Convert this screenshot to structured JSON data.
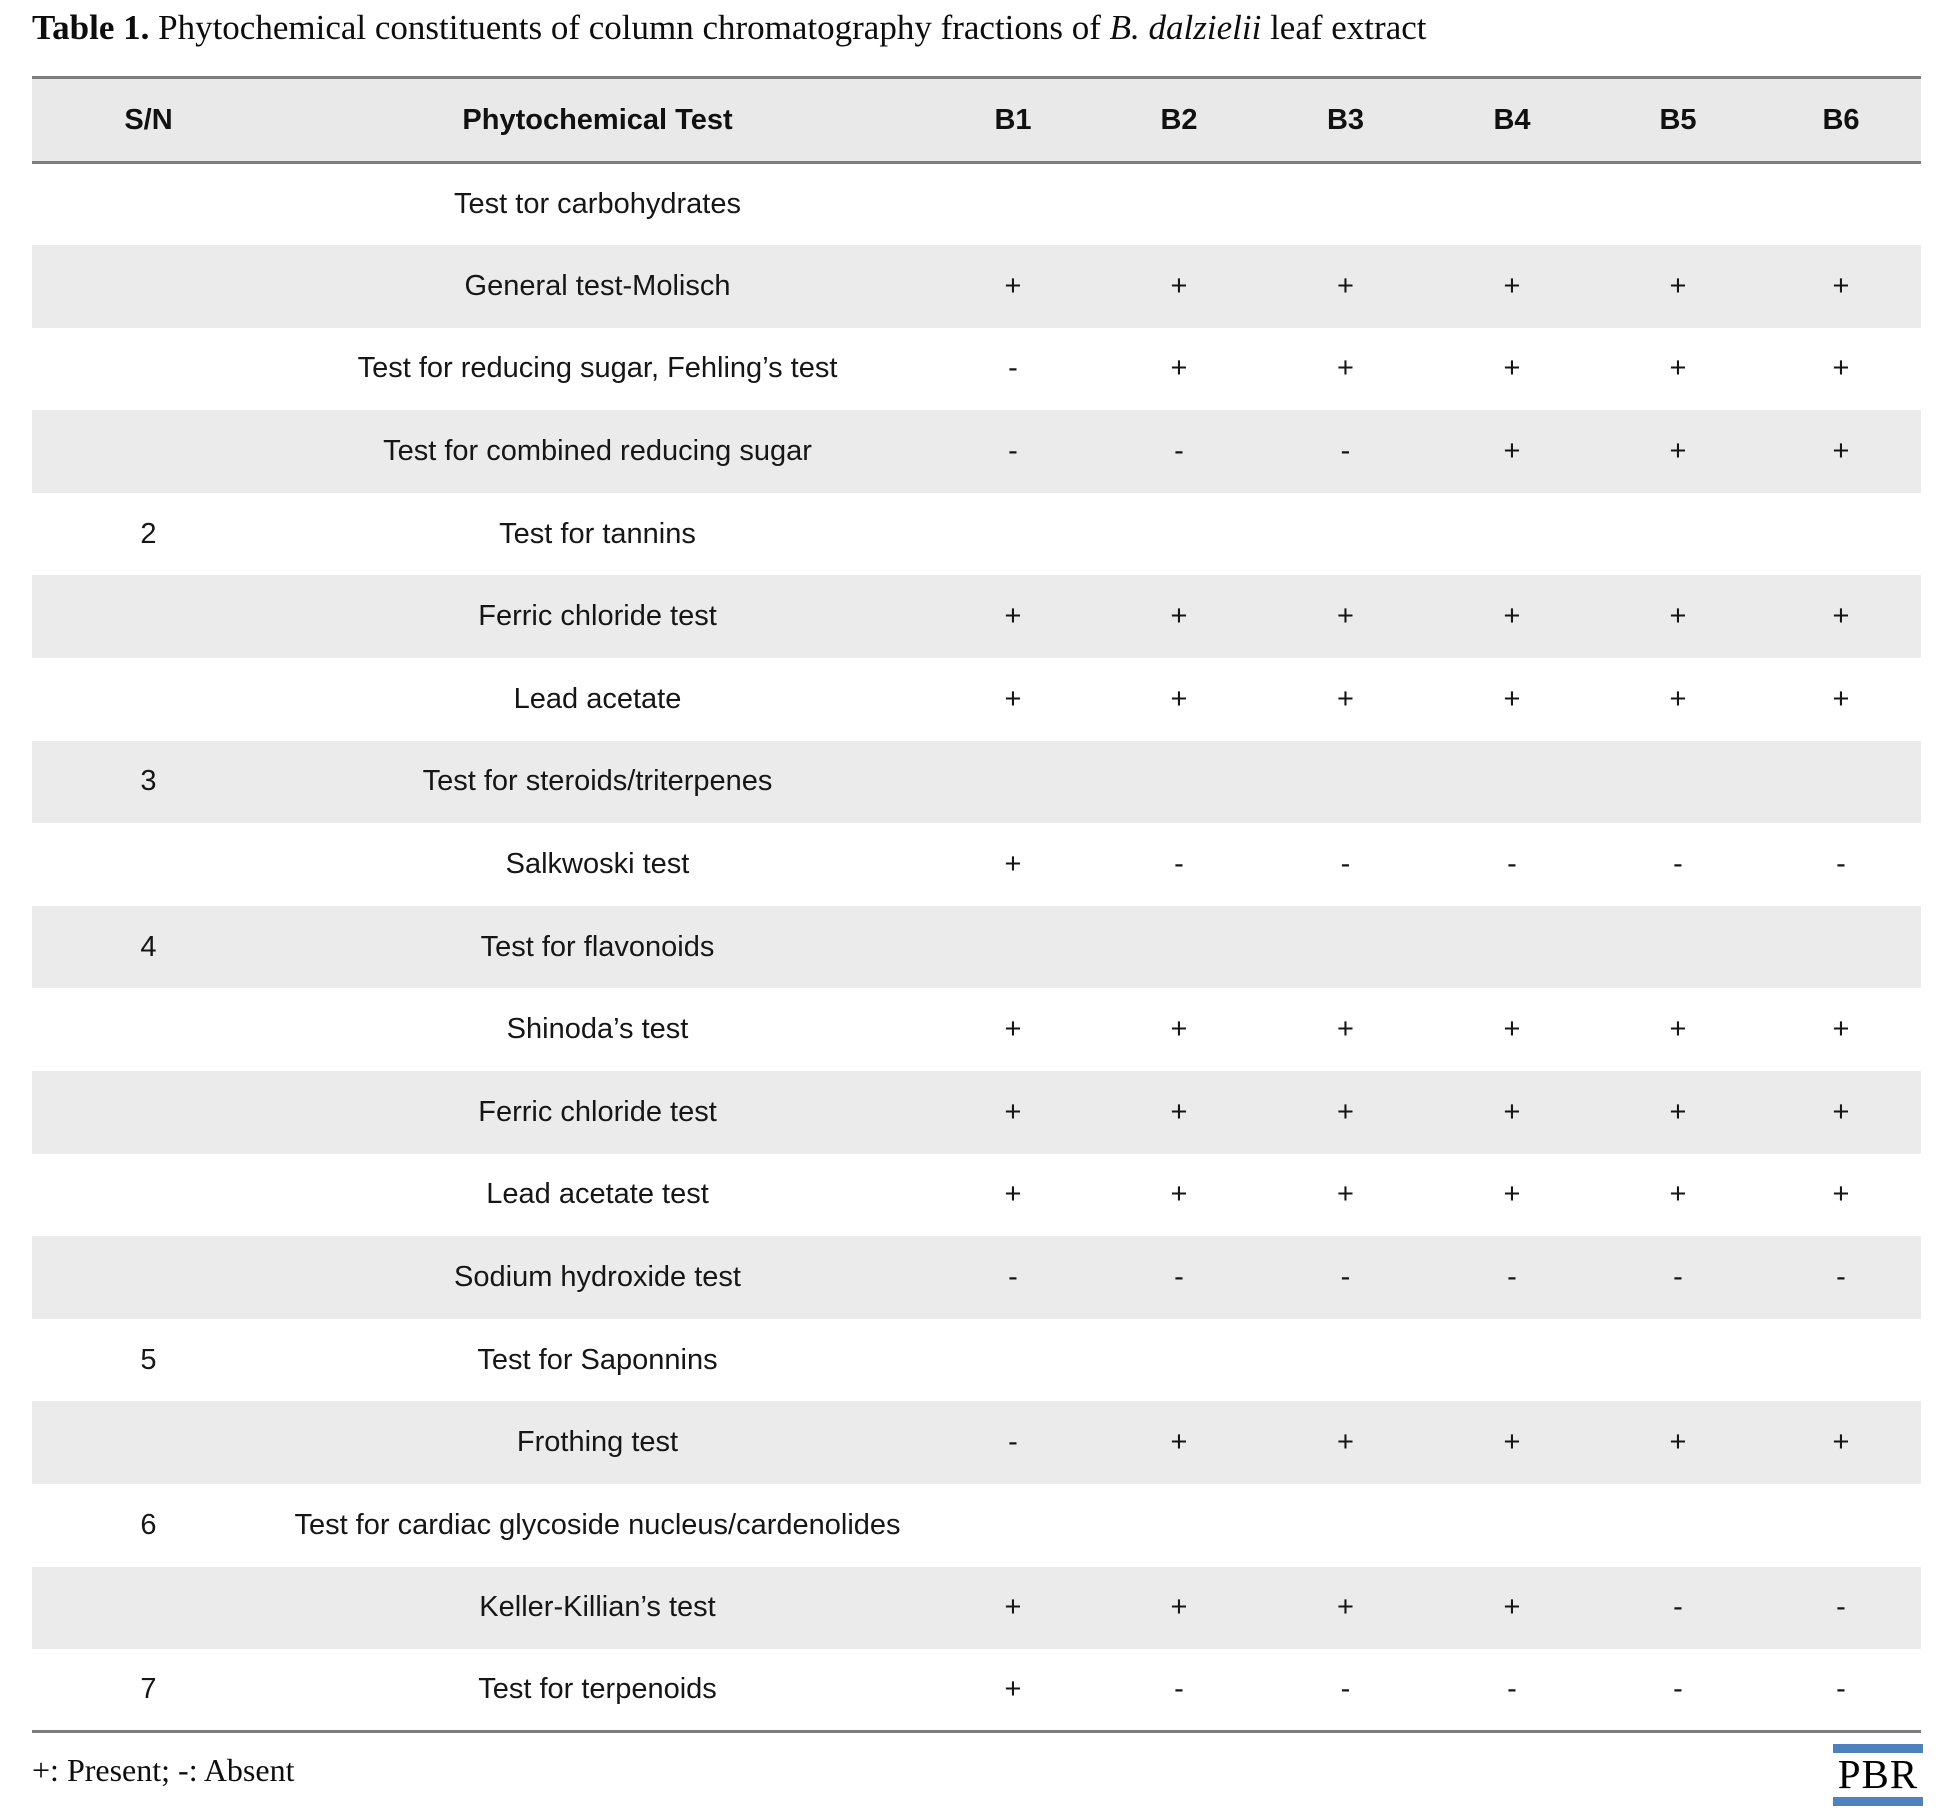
{
  "title": {
    "label": "Table 1.",
    "text_before_species": " Phytochemical constituents of column chromatography fractions of ",
    "species": "B. dalzielii",
    "text_after_species": " leaf extract"
  },
  "table": {
    "columns": [
      "S/N",
      "Phytochemical Test",
      "B1",
      "B2",
      "B3",
      "B4",
      "B5",
      "B6"
    ],
    "rows": [
      {
        "sn": "",
        "test": "Test tor carbohydrates",
        "values": [
          "",
          "",
          "",
          "",
          "",
          ""
        ]
      },
      {
        "sn": "",
        "test": "General test-Molisch",
        "values": [
          "+",
          "+",
          "+",
          "+",
          "+",
          "+"
        ]
      },
      {
        "sn": "",
        "test": "Test for reducing sugar, Fehling’s test",
        "values": [
          "-",
          "+",
          "+",
          "+",
          "+",
          "+"
        ]
      },
      {
        "sn": "",
        "test": "Test for combined reducing sugar",
        "values": [
          "-",
          "-",
          "-",
          "+",
          "+",
          "+"
        ]
      },
      {
        "sn": "2",
        "test": "Test for tannins",
        "values": [
          "",
          "",
          "",
          "",
          "",
          ""
        ]
      },
      {
        "sn": "",
        "test": "Ferric chloride test",
        "values": [
          "+",
          "+",
          "+",
          "+",
          "+",
          "+"
        ]
      },
      {
        "sn": "",
        "test": "Lead acetate",
        "values": [
          "+",
          "+",
          "+",
          "+",
          "+",
          "+"
        ]
      },
      {
        "sn": "3",
        "test": "Test for steroids/triterpenes",
        "values": [
          "",
          "",
          "",
          "",
          "",
          ""
        ]
      },
      {
        "sn": "",
        "test": "Salkwoski test",
        "values": [
          "+",
          "-",
          "-",
          "-",
          "-",
          "-"
        ]
      },
      {
        "sn": "4",
        "test": "Test for flavonoids",
        "values": [
          "",
          "",
          "",
          "",
          "",
          ""
        ]
      },
      {
        "sn": "",
        "test": "Shinoda’s test",
        "values": [
          "+",
          "+",
          "+",
          "+",
          "+",
          "+"
        ]
      },
      {
        "sn": "",
        "test": "Ferric chloride test",
        "values": [
          "+",
          "+",
          "+",
          "+",
          "+",
          "+"
        ]
      },
      {
        "sn": "",
        "test": "Lead acetate test",
        "values": [
          "+",
          "+",
          "+",
          "+",
          "+",
          "+"
        ]
      },
      {
        "sn": "",
        "test": "Sodium hydroxide test",
        "values": [
          "-",
          "-",
          "-",
          "-",
          "-",
          "-"
        ]
      },
      {
        "sn": "5",
        "test": "Test for Saponnins",
        "values": [
          "",
          "",
          "",
          "",
          "",
          ""
        ]
      },
      {
        "sn": "",
        "test": "Frothing test",
        "values": [
          "-",
          "+",
          "+",
          "+",
          "+",
          "+"
        ]
      },
      {
        "sn": "6",
        "test": "Test for cardiac glycoside nucleus/cardenolides",
        "values": [
          "",
          "",
          "",
          "",
          "",
          ""
        ]
      },
      {
        "sn": "",
        "test": "Keller-Killian’s test",
        "values": [
          "+",
          "+",
          "+",
          "+",
          "-",
          "-"
        ]
      },
      {
        "sn": "7",
        "test": "Test for terpenoids",
        "values": [
          "+",
          "-",
          "-",
          "-",
          "-",
          "-"
        ]
      }
    ]
  },
  "footnote": "+: Present; -: Absent",
  "logo": {
    "text": "PBR",
    "bar_color": "#4f81bd"
  },
  "colors": {
    "row_shade": "#ebebeb",
    "header_shade": "#e9e9e9",
    "border": "#7d7d7d",
    "logo_blue": "#4f81bd"
  }
}
